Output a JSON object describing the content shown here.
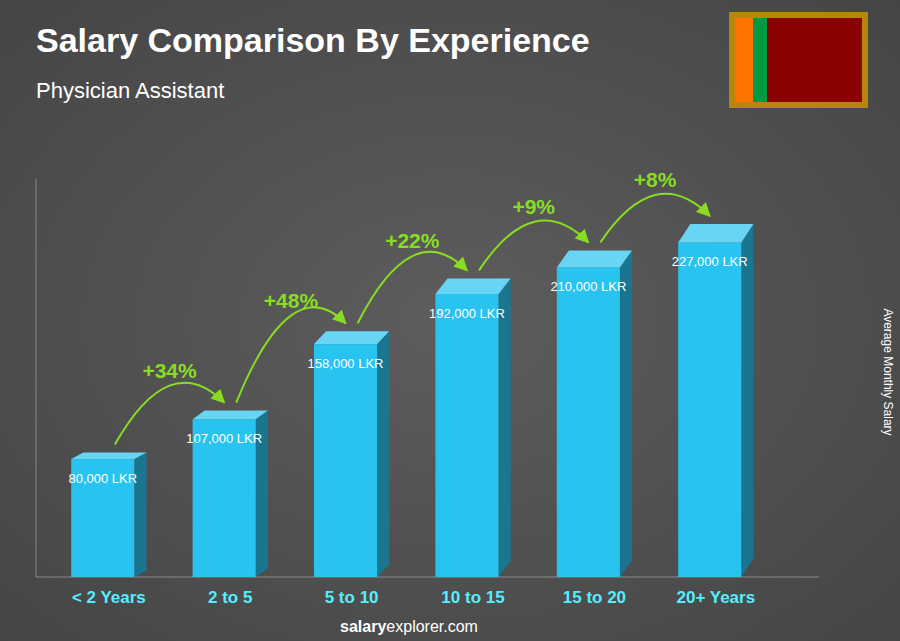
{
  "chart_data": {
    "type": "bar",
    "title": "Salary Comparison By Experience",
    "subtitle": "Physician Assistant",
    "categories": [
      "< 2 Years",
      "2 to 5",
      "5 to 10",
      "10 to 15",
      "15 to 20",
      "20+ Years"
    ],
    "values": [
      80000,
      107000,
      158000,
      192000,
      210000,
      227000
    ],
    "value_labels": [
      "80,000 LKR",
      "107,000 LKR",
      "158,000 LKR",
      "192,000 LKR",
      "210,000 LKR",
      "227,000 LKR"
    ],
    "data_labels": true,
    "annotations": [
      "+34%",
      "+48%",
      "+22%",
      "+9%",
      "+8%"
    ],
    "ylabel": "Average Monthly Salary",
    "footer": [
      "salary",
      "explorer.com"
    ],
    "color": "#29c3f0",
    "ylim": [
      0,
      270000
    ],
    "grid": false,
    "tick_labels": false
  }
}
